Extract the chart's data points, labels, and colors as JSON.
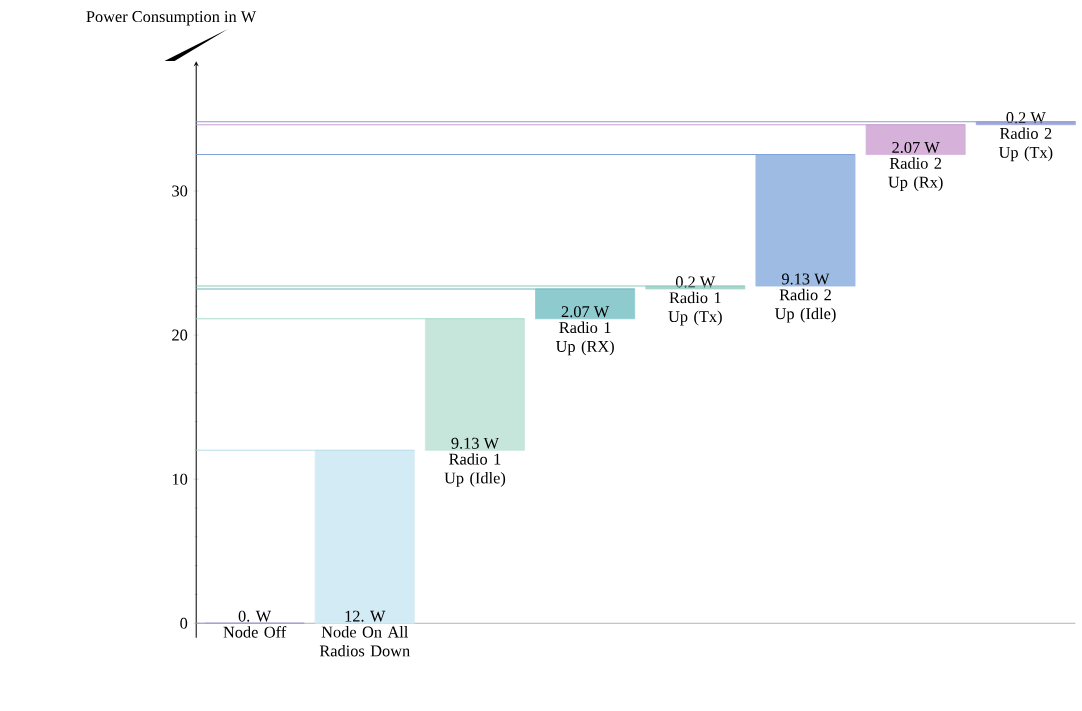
{
  "chart_data": {
    "type": "bar",
    "ylabel": "Power Consumption  in W",
    "categories": [
      "Node Off",
      "Node On All Radios Down",
      "Radio 1 Up (Idle)",
      "Radio 1 Up (RX)",
      "Radio 1 Up (Tx)",
      "Radio 2 Up (Idle)",
      "Radio 2 Up (Rx)",
      "Radio 2 Up (Tx)"
    ],
    "values": [
      0,
      12,
      9.13,
      2.07,
      0.2,
      9.13,
      2.07,
      0.2
    ],
    "base": [
      0,
      0,
      12,
      21.13,
      23.2,
      23.4,
      32.53,
      34.6
    ],
    "value_labels": [
      "0. W",
      "12. W",
      "9.13 W",
      "2.07 W",
      "0.2 W",
      "9.13 W",
      "2.07 W",
      "0.2 W"
    ],
    "colors": [
      "#a89fd6",
      "#d3ebf4",
      "#c6e6dc",
      "#8ecbcf",
      "#a8d6cc",
      "#9dbbe3",
      "#d6b2da",
      "#9fa8d8"
    ],
    "ylim": [
      -1,
      39
    ],
    "yticks": [
      0,
      10,
      20,
      30
    ],
    "ref_lines": [
      {
        "axis": "y",
        "value": 0,
        "color": "#a89fd6"
      },
      {
        "axis": "y",
        "value": 12,
        "color": "#b9dcea"
      },
      {
        "axis": "y",
        "value": 21.13,
        "color": "#a9dccd"
      },
      {
        "axis": "y",
        "value": 23.2,
        "color": "#6fb8bd"
      },
      {
        "axis": "y",
        "value": 23.4,
        "color": "#8ccabd"
      },
      {
        "axis": "y",
        "value": 32.53,
        "color": "#7fa3d8"
      },
      {
        "axis": "y",
        "value": 34.6,
        "color": "#c9a0d0"
      },
      {
        "axis": "y",
        "value": 34.8,
        "color": "#8f9ad0"
      }
    ]
  }
}
